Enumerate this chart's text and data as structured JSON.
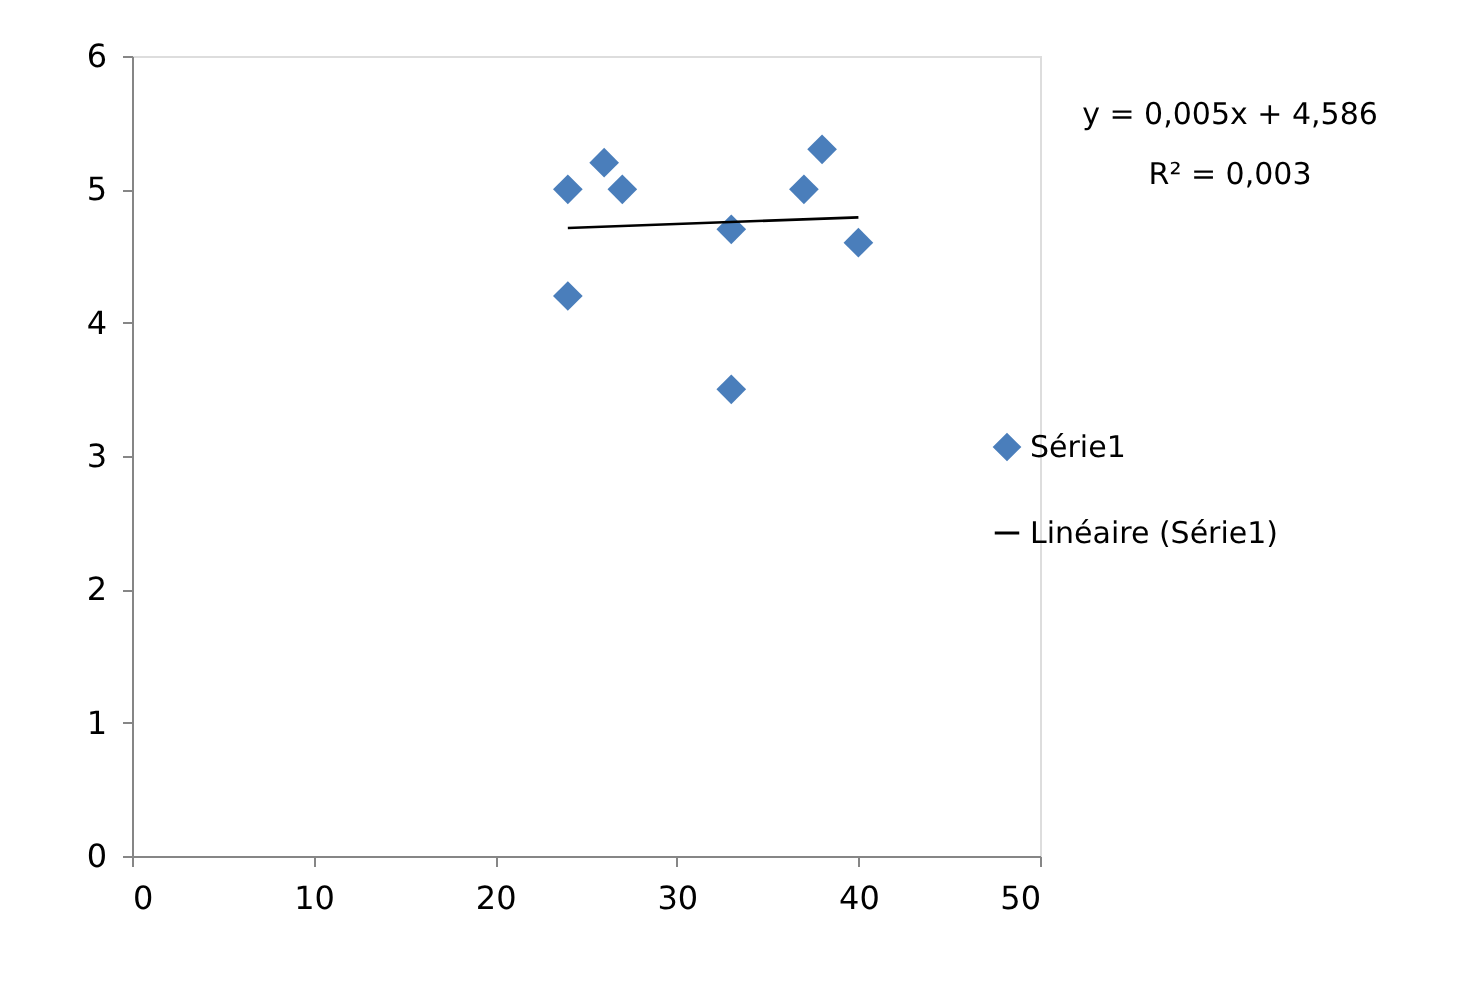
{
  "chart_data": {
    "type": "scatter",
    "series": [
      {
        "name": "Série1",
        "color": "#4a7ebb",
        "marker": "diamond",
        "x": [
          24,
          24,
          26,
          27,
          33,
          33,
          37,
          38,
          40
        ],
        "values": [
          5,
          4.2,
          5.2,
          5,
          4.7,
          3.5,
          5,
          5.3,
          4.6
        ]
      },
      {
        "name": "Linéaire (Série1)",
        "type": "line",
        "color": "#000000",
        "line_style": "solid",
        "x": [
          24,
          40
        ],
        "values": [
          4.71,
          4.79
        ]
      }
    ],
    "annotations": [
      "y = 0,005x + 4,586",
      "R² = 0,003"
    ],
    "xlim": [
      0,
      50
    ],
    "xticks": [
      0,
      10,
      20,
      30,
      40,
      50
    ],
    "ylim": [
      0,
      6
    ],
    "yticks": [
      0,
      1,
      2,
      3,
      4,
      5,
      6
    ],
    "grid": false,
    "legend": "right"
  }
}
